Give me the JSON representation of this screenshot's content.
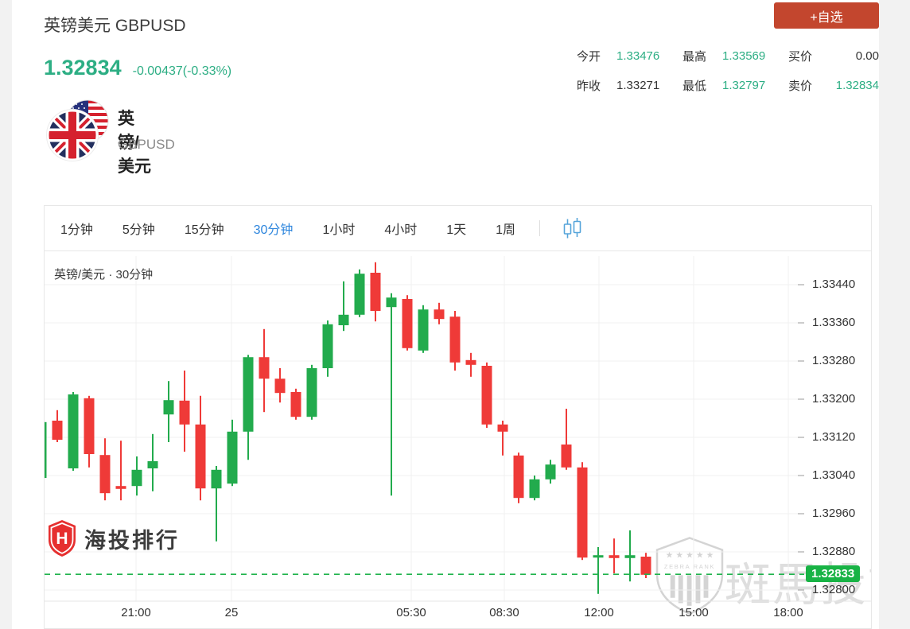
{
  "header": {
    "title": "英镑美元 GBPUSD",
    "price": "1.32834",
    "change": "-0.00437(-0.33%)",
    "watchlist_button": "+自选",
    "stats": [
      {
        "label": "今开",
        "value": "1.33476",
        "green": true,
        "right": false
      },
      {
        "label": "最高",
        "value": "1.33569",
        "green": true,
        "right": false
      },
      {
        "label": "买价",
        "value": "0.00",
        "green": false,
        "right": true
      },
      {
        "label": "昨收",
        "value": "1.33271",
        "green": false,
        "right": false
      },
      {
        "label": "最低",
        "value": "1.32797",
        "green": true,
        "right": false
      },
      {
        "label": "卖价",
        "value": "1.32834",
        "green": true,
        "right": true
      }
    ],
    "instrument": {
      "name": "英镑/美元",
      "code": "GBPUSD"
    }
  },
  "toolbar": {
    "tabs": [
      {
        "label": "1分钟",
        "active": false
      },
      {
        "label": "5分钟",
        "active": false
      },
      {
        "label": "15分钟",
        "active": false
      },
      {
        "label": "30分钟",
        "active": true
      },
      {
        "label": "1小时",
        "active": false
      },
      {
        "label": "4小时",
        "active": false
      },
      {
        "label": "1天",
        "active": false
      },
      {
        "label": "1周",
        "active": false
      }
    ]
  },
  "chart_data": {
    "type": "candlestick",
    "title": "英镑/美元 · 30分钟",
    "interval": "30分钟",
    "current_price": 1.32833,
    "current_price_label": "1.32833",
    "y_ticks": [
      "1.33440",
      "1.33360",
      "1.33280",
      "1.33200",
      "1.33120",
      "1.33040",
      "1.32960",
      "1.32880",
      "1.32800"
    ],
    "y_range": [
      1.32777,
      1.335
    ],
    "x_ticks": [
      {
        "label": "21:00",
        "x": 115
      },
      {
        "label": "25",
        "x": 235
      },
      {
        "label": "05:30",
        "x": 461
      },
      {
        "label": "08:30",
        "x": 578
      },
      {
        "label": "12:00",
        "x": 697
      },
      {
        "label": "15:00",
        "x": 816
      },
      {
        "label": "18:00",
        "x": 935
      }
    ],
    "candles": [
      [
        1.33035,
        1.33155,
        1.33032,
        1.33152
      ],
      [
        1.33155,
        1.33177,
        1.3311,
        1.33115
      ],
      [
        1.33055,
        1.33215,
        1.3305,
        1.3321
      ],
      [
        1.33202,
        1.33207,
        1.33057,
        1.33085
      ],
      [
        1.33083,
        1.33118,
        1.32988,
        1.33003
      ],
      [
        1.33018,
        1.33113,
        1.32988,
        1.33012
      ],
      [
        1.33018,
        1.3308,
        1.32998,
        1.33052
      ],
      [
        1.33055,
        1.33127,
        1.33007,
        1.3307
      ],
      [
        1.33168,
        1.33238,
        1.3311,
        1.33198
      ],
      [
        1.33197,
        1.3326,
        1.3309,
        1.33147
      ],
      [
        1.33147,
        1.33207,
        1.32988,
        1.33013
      ],
      [
        1.33013,
        1.3306,
        1.32902,
        1.33052
      ],
      [
        1.33023,
        1.33157,
        1.33018,
        1.33132
      ],
      [
        1.33132,
        1.33293,
        1.33073,
        1.33288
      ],
      [
        1.33288,
        1.33347,
        1.33173,
        1.33243
      ],
      [
        1.33243,
        1.33265,
        1.33193,
        1.33213
      ],
      [
        1.33215,
        1.33222,
        1.33157,
        1.33163
      ],
      [
        1.33163,
        1.33272,
        1.33157,
        1.33265
      ],
      [
        1.33265,
        1.33365,
        1.33247,
        1.33357
      ],
      [
        1.33355,
        1.33447,
        1.33343,
        1.33377
      ],
      [
        1.33377,
        1.33472,
        1.33372,
        1.33463
      ],
      [
        1.33465,
        1.33487,
        1.33363,
        1.33385
      ],
      [
        1.33393,
        1.33422,
        1.32998,
        1.33413
      ],
      [
        1.3341,
        1.33418,
        1.33302,
        1.33307
      ],
      [
        1.33302,
        1.33397,
        1.33297,
        1.33388
      ],
      [
        1.33388,
        1.33402,
        1.33357,
        1.33368
      ],
      [
        1.33373,
        1.33385,
        1.3326,
        1.33277
      ],
      [
        1.33282,
        1.33297,
        1.33247,
        1.33272
      ],
      [
        1.3327,
        1.33277,
        1.3314,
        1.33147
      ],
      [
        1.33147,
        1.33155,
        1.33082,
        1.33132
      ],
      [
        1.33082,
        1.33088,
        1.32982,
        1.32993
      ],
      [
        1.32993,
        1.3304,
        1.32988,
        1.33032
      ],
      [
        1.33032,
        1.33073,
        1.33023,
        1.33063
      ],
      [
        1.33105,
        1.3318,
        1.33052,
        1.33057
      ],
      [
        1.33057,
        1.33068,
        1.32863,
        1.32868
      ],
      [
        1.32868,
        1.3289,
        1.32792,
        1.32873
      ],
      [
        1.32873,
        1.32908,
        1.32835,
        1.32867
      ],
      [
        1.32867,
        1.32925,
        1.32818,
        1.32873
      ],
      [
        1.3287,
        1.32878,
        1.32825,
        1.32832
      ]
    ],
    "layout": {
      "x_start": -4,
      "candle_step": 20,
      "candle_width": 13,
      "legend": "none",
      "grid": true
    },
    "colors": {
      "up": "#22ab4d",
      "down": "#ef3a38",
      "dash_green": "#1fb34c",
      "tag_green": "#18b345"
    }
  },
  "watermarks": {
    "brand": "海投排行",
    "brand_initial": "H",
    "zebra_stars": "★ ★ ★ ★ ★",
    "zebra_badge": "ZEBRA RANK",
    "zebra_text": "斑馬投訴"
  },
  "colors": {
    "price_green": "#2dae84",
    "accent_blue": "#2e86dd",
    "button_red": "#c3462e"
  }
}
